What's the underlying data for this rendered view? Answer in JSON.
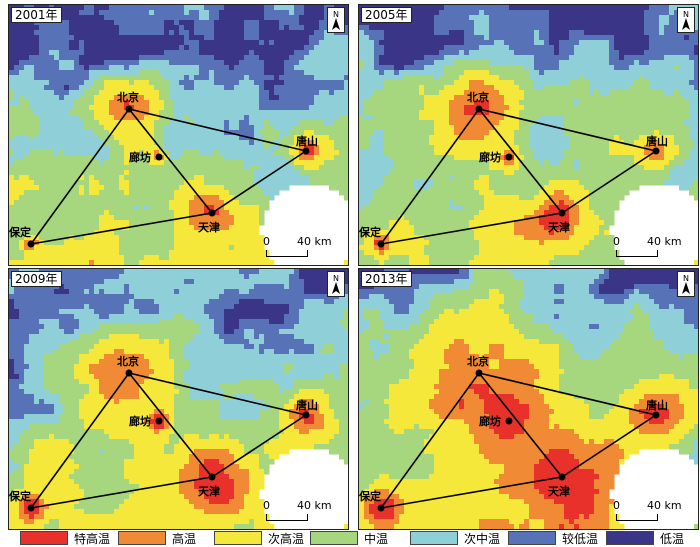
{
  "panels": [
    {
      "year": "2001年",
      "seed": 11,
      "heat": 1.0
    },
    {
      "year": "2005年",
      "seed": 23,
      "heat": 1.2
    },
    {
      "year": "2009年",
      "seed": 37,
      "heat": 1.5
    },
    {
      "year": "2013年",
      "seed": 51,
      "heat": 2.1
    }
  ],
  "cities": {
    "beijing": "北京",
    "langfang": "廊坊",
    "tangshan": "唐山",
    "tianjin": "天津",
    "baoding": "保定"
  },
  "north_label": "N",
  "scale": {
    "zero": "0",
    "distance": "40 km"
  },
  "legend": [
    {
      "label": "特高温",
      "color": "#e8312a"
    },
    {
      "label": "高温",
      "color": "#f08a34"
    },
    {
      "label": "次高温",
      "color": "#f5e83a"
    },
    {
      "label": "中温",
      "color": "#a6d67e"
    },
    {
      "label": "次中温",
      "color": "#8fd0d8"
    },
    {
      "label": "较低温",
      "color": "#5872b8"
    },
    {
      "label": "低温",
      "color": "#3a3587"
    }
  ]
}
